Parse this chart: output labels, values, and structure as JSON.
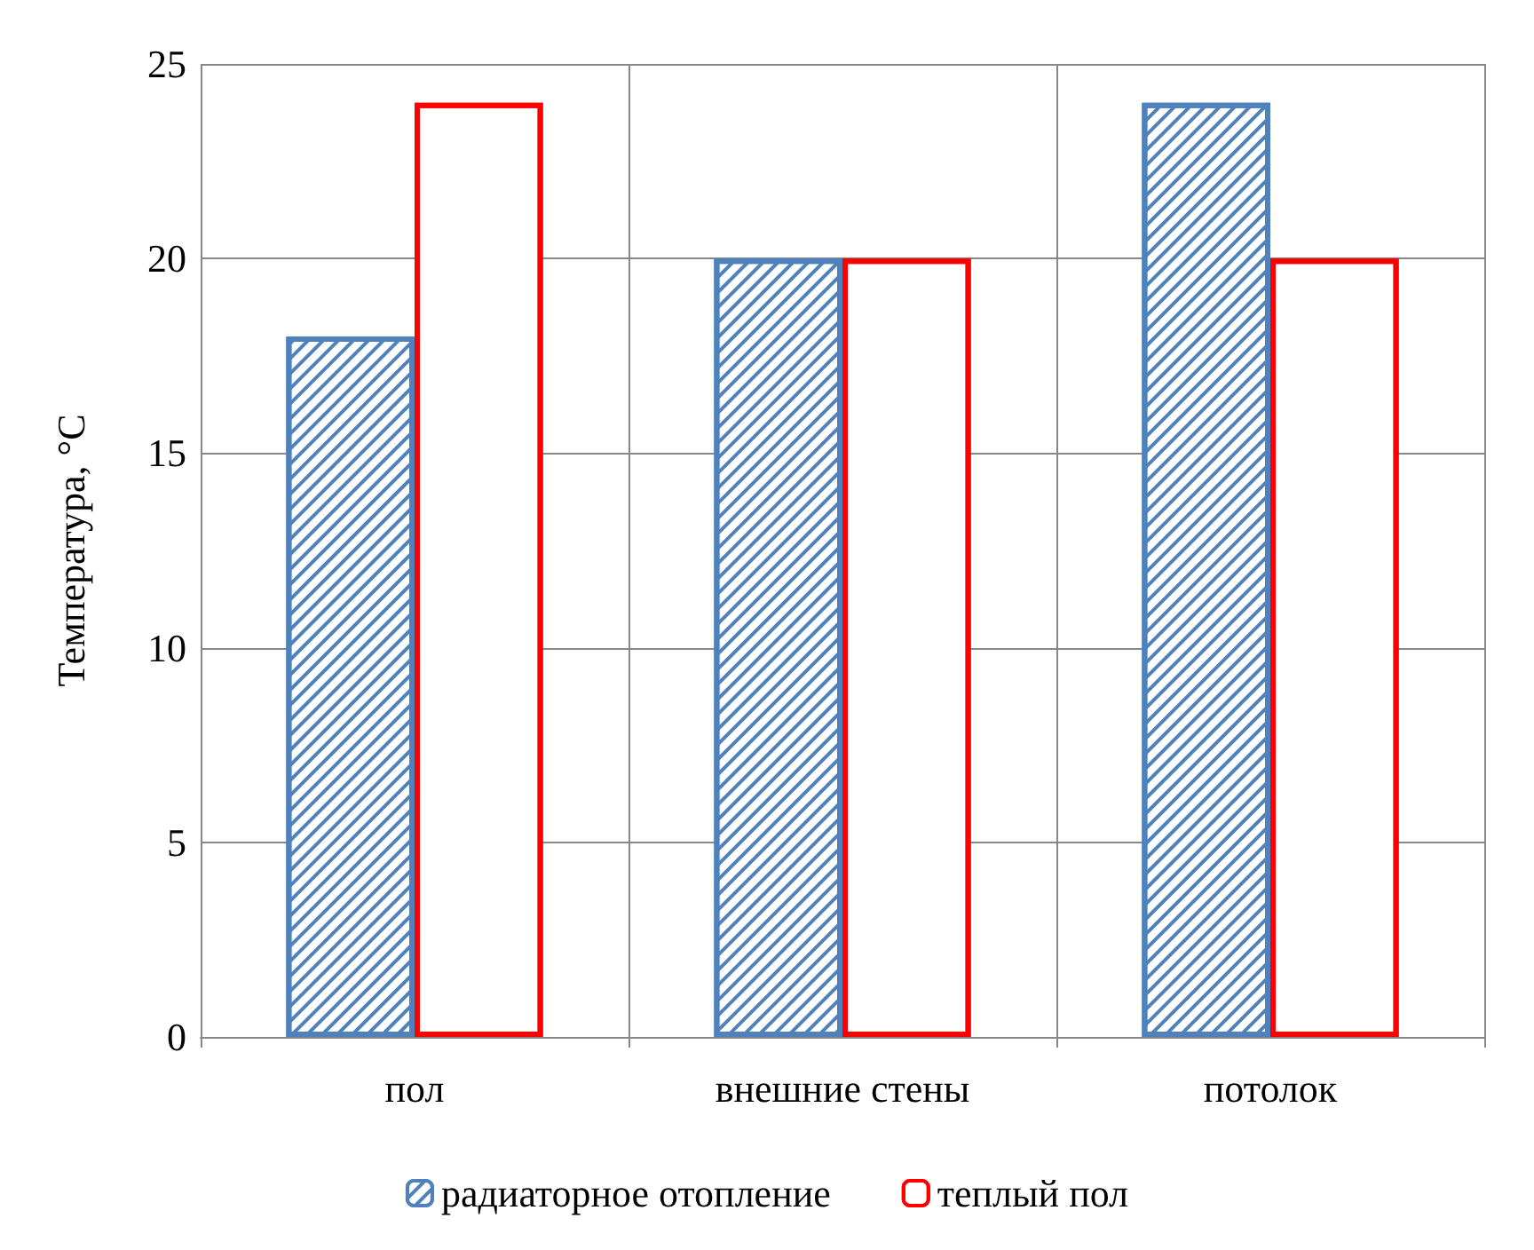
{
  "chart_data": {
    "type": "bar",
    "ylabel": "Температура, °С",
    "categories": [
      "пол",
      "внешние стены",
      "потолок"
    ],
    "series": [
      {
        "name": "радиаторное отопление",
        "color": "#4f81bd",
        "values": [
          18,
          20,
          24
        ]
      },
      {
        "name": "теплый пол",
        "color": "#ff0000",
        "values": [
          24,
          20,
          20
        ]
      }
    ],
    "ylim": [
      0,
      25
    ],
    "yticks": [
      0,
      5,
      10,
      15,
      20,
      25
    ],
    "grid": true,
    "legend": "bottom"
  }
}
